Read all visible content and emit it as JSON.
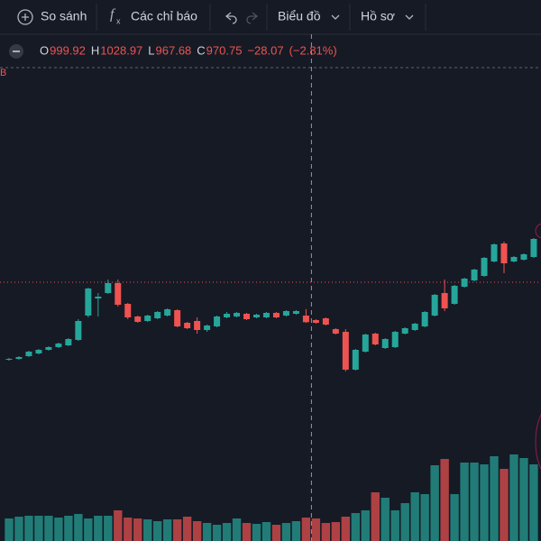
{
  "toolbar": {
    "compare": "So sánh",
    "indicators": "Các chỉ báo",
    "chart": "Biểu đồ",
    "profile": "Hồ sơ"
  },
  "legend": {
    "o": "O",
    "h": "H",
    "l": "L",
    "c": "C",
    "change": {
      "value": -28.07,
      "label": "−28.07"
    },
    "change_pct": {
      "value": -2.81,
      "label": "(−2.81%)"
    }
  },
  "chart_data": {
    "type": "candlestick",
    "edge_label": "B",
    "up_color": "#26a69a",
    "down_color": "#ef5350",
    "ylim": [
      560,
      2120
    ],
    "volume_lim": [
      0,
      100
    ],
    "price_line": 1148,
    "crosshair_index": 30,
    "candles": [
      [
        804,
        812,
        800,
        808
      ],
      [
        808,
        820,
        804,
        816
      ],
      [
        820,
        844,
        816,
        840
      ],
      [
        832,
        852,
        828,
        848
      ],
      [
        848,
        864,
        844,
        860
      ],
      [
        860,
        880,
        856,
        876
      ],
      [
        868,
        900,
        864,
        896
      ],
      [
        892,
        984,
        888,
        976
      ],
      [
        1000,
        1124,
        992,
        1120
      ],
      [
        1076,
        1100,
        996,
        1084
      ],
      [
        1100,
        1160,
        1096,
        1144
      ],
      [
        1144,
        1160,
        1040,
        1048
      ],
      [
        1052,
        1056,
        984,
        992
      ],
      [
        996,
        1000,
        968,
        972
      ],
      [
        976,
        1004,
        972,
        1000
      ],
      [
        988,
        1020,
        984,
        1016
      ],
      [
        1000,
        1032,
        996,
        1028
      ],
      [
        1024,
        1028,
        948,
        952
      ],
      [
        968,
        972,
        940,
        944
      ],
      [
        976,
        992,
        920,
        936
      ],
      [
        936,
        960,
        928,
        956
      ],
      [
        952,
        1000,
        948,
        996
      ],
      [
        992,
        1016,
        988,
        1008
      ],
      [
        996,
        1016,
        992,
        1012
      ],
      [
        1008,
        1012,
        980,
        984
      ],
      [
        992,
        1008,
        988,
        1004
      ],
      [
        992,
        1016,
        988,
        1012
      ],
      [
        1012,
        1016,
        988,
        992
      ],
      [
        1000,
        1024,
        996,
        1020
      ],
      [
        1008,
        1024,
        1004,
        1020
      ],
      [
        999.92,
        1028.97,
        967.68,
        970.75
      ],
      [
        980,
        984,
        964,
        968
      ],
      [
        988,
        992,
        956,
        960
      ],
      [
        940,
        944,
        916,
        920
      ],
      [
        928,
        940,
        752,
        760
      ],
      [
        760,
        852,
        756,
        848
      ],
      [
        840,
        920,
        836,
        916
      ],
      [
        920,
        924,
        868,
        872
      ],
      [
        856,
        900,
        852,
        896
      ],
      [
        860,
        932,
        856,
        928
      ],
      [
        920,
        948,
        916,
        944
      ],
      [
        936,
        968,
        932,
        964
      ],
      [
        952,
        1020,
        948,
        1016
      ],
      [
        1000,
        1096,
        996,
        1092
      ],
      [
        1100,
        1160,
        1020,
        1032
      ],
      [
        1052,
        1136,
        1048,
        1132
      ],
      [
        1128,
        1168,
        1124,
        1164
      ],
      [
        1156,
        1208,
        1152,
        1204
      ],
      [
        1176,
        1260,
        1172,
        1256
      ],
      [
        1240,
        1320,
        1236,
        1316
      ],
      [
        1320,
        1328,
        1188,
        1232
      ],
      [
        1240,
        1264,
        1236,
        1260
      ],
      [
        1248,
        1276,
        1244,
        1272
      ],
      [
        1260,
        1344,
        1256,
        1340
      ]
    ],
    "volume": [
      25,
      27,
      28,
      28,
      28,
      26,
      28,
      30,
      25,
      28,
      28,
      34,
      26,
      25,
      24,
      22,
      24,
      24,
      27,
      22,
      20,
      18,
      20,
      25,
      20,
      19,
      21,
      18,
      20,
      22,
      26,
      25,
      20,
      21,
      27,
      31,
      34,
      54,
      48,
      34,
      42,
      54,
      52,
      84,
      91,
      52,
      87,
      87,
      85,
      94,
      80,
      96,
      92,
      85
    ]
  }
}
